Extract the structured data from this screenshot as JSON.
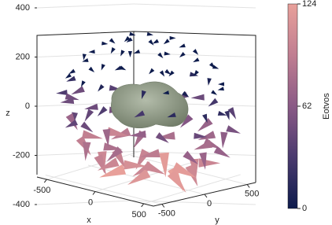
{
  "chart_data": {
    "type": "cone3d",
    "xlabel": "x",
    "ylabel": "y",
    "zlabel": "z",
    "xlim": [
      -600,
      600
    ],
    "ylim": [
      -600,
      600
    ],
    "zlim": [
      -560,
      560
    ],
    "xticks": [
      -500,
      0,
      500
    ],
    "yticks": [
      -500,
      0,
      500
    ],
    "zticks": [
      -400,
      -200,
      0,
      200,
      400
    ],
    "grid": true,
    "colorbar": {
      "label": "Eotvos",
      "lim": [
        0,
        124
      ],
      "ticks": [
        0,
        62,
        124
      ],
      "colors": [
        "#0d1b4c",
        "#4a3a6e",
        "#8a5a86",
        "#c07e91",
        "#e8a09a"
      ]
    },
    "body_color": "#8f9c88"
  }
}
